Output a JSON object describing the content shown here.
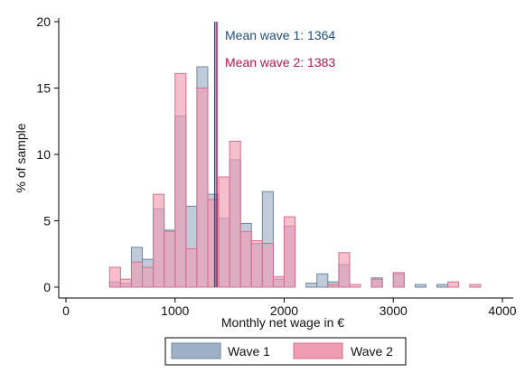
{
  "chart_data": {
    "type": "bar",
    "subtype": "overlaid-histogram",
    "title": "",
    "xlabel": "Monthly net wage in €",
    "ylabel": "% of sample",
    "xlim": [
      0,
      4000
    ],
    "ylim": [
      0,
      20
    ],
    "xticks": [
      0,
      1000,
      2000,
      3000,
      4000
    ],
    "yticks": [
      0,
      5,
      10,
      15,
      20
    ],
    "grid": false,
    "legend_position": "bottom",
    "bin_width": 100,
    "series": [
      {
        "name": "Wave 1",
        "color": "#9eb1c6",
        "points": [
          [
            450,
            0.4
          ],
          [
            550,
            0.3
          ],
          [
            650,
            3.0
          ],
          [
            750,
            2.1
          ],
          [
            850,
            5.9
          ],
          [
            950,
            4.3
          ],
          [
            1050,
            12.9
          ],
          [
            1150,
            6.1
          ],
          [
            1250,
            16.6
          ],
          [
            1350,
            7.0
          ],
          [
            1450,
            5.2
          ],
          [
            1550,
            9.6
          ],
          [
            1650,
            4.8
          ],
          [
            1750,
            3.3
          ],
          [
            1850,
            7.2
          ],
          [
            1950,
            0.6
          ],
          [
            2050,
            4.6
          ],
          [
            2250,
            0.3
          ],
          [
            2350,
            1.0
          ],
          [
            2450,
            0.4
          ],
          [
            2550,
            1.7
          ],
          [
            2850,
            0.7
          ],
          [
            3050,
            1.0
          ],
          [
            3250,
            0.2
          ],
          [
            3450,
            0.2
          ]
        ]
      },
      {
        "name": "Wave 2",
        "color": "#ef9db3",
        "points": [
          [
            450,
            1.5
          ],
          [
            550,
            0.6
          ],
          [
            650,
            1.9
          ],
          [
            750,
            1.5
          ],
          [
            850,
            7.0
          ],
          [
            950,
            4.2
          ],
          [
            1050,
            16.1
          ],
          [
            1150,
            2.9
          ],
          [
            1250,
            15.0
          ],
          [
            1350,
            6.6
          ],
          [
            1450,
            8.3
          ],
          [
            1550,
            11.0
          ],
          [
            1650,
            4.2
          ],
          [
            1750,
            3.5
          ],
          [
            1850,
            3.3
          ],
          [
            1950,
            0.8
          ],
          [
            2050,
            5.3
          ],
          [
            2450,
            0.2
          ],
          [
            2550,
            2.6
          ],
          [
            2650,
            0.2
          ],
          [
            2850,
            0.6
          ],
          [
            3050,
            1.1
          ],
          [
            3550,
            0.4
          ],
          [
            3750,
            0.2
          ]
        ]
      }
    ],
    "annotations": [
      {
        "name": "mean-wave-1",
        "text": "Mean wave 1: 1364",
        "x": 1364,
        "color": "#1f4e79"
      },
      {
        "name": "mean-wave-2",
        "text": "Mean wave 2: 1383",
        "x": 1383,
        "color": "#b0174a"
      }
    ],
    "legend": [
      {
        "label": "Wave 1",
        "color": "#9eb1c6",
        "border": "#6f86a0"
      },
      {
        "label": "Wave 2",
        "color": "#ef9db3",
        "border": "#d56e8e"
      }
    ]
  }
}
